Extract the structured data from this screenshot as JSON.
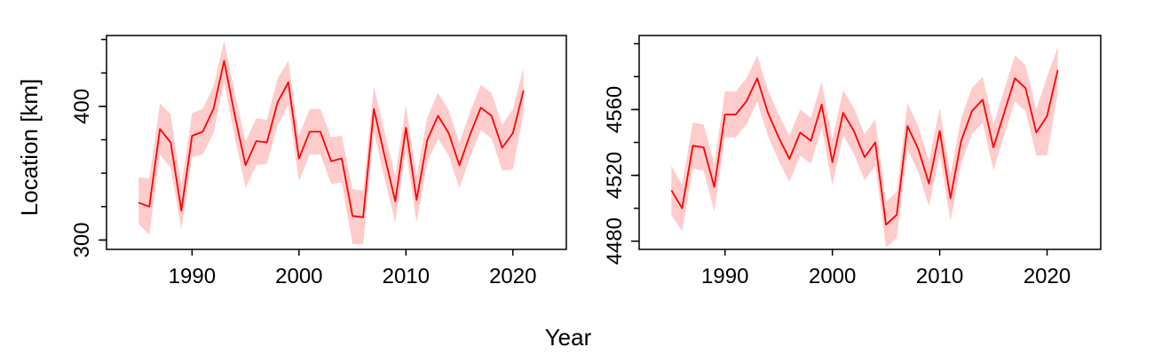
{
  "figure": {
    "shared_xlabel": "Year",
    "shared_ylabel": "Location [km]"
  },
  "colors": {
    "line": "#ff0000",
    "band": "#ffcccc"
  },
  "chart_data": [
    {
      "type": "line",
      "title": "",
      "xlabel": "Year",
      "ylabel": "Location [km]",
      "xlim": [
        1982,
        2025
      ],
      "ylim": [
        293,
        453
      ],
      "x_ticks": [
        1990,
        2000,
        2010,
        2020
      ],
      "y_ticks": [
        300,
        400
      ],
      "y_minor_ticks": [
        300,
        325,
        350,
        375,
        400,
        425,
        450
      ],
      "grid": false,
      "x": [
        1985,
        1986,
        1987,
        1988,
        1989,
        1990,
        1991,
        1992,
        1993,
        1994,
        1995,
        1996,
        1997,
        1998,
        1999,
        2000,
        2001,
        2002,
        2003,
        2004,
        2005,
        2006,
        2007,
        2008,
        2009,
        2010,
        2011,
        2012,
        2013,
        2014,
        2015,
        2016,
        2017,
        2018,
        2019,
        2020,
        2021
      ],
      "series": [
        {
          "values": [
            328,
            325,
            383,
            373,
            322,
            378,
            381,
            398,
            434,
            393,
            356,
            374,
            373,
            403,
            418,
            361,
            381,
            381,
            359,
            361,
            318,
            317,
            398,
            363,
            329,
            384,
            330,
            375,
            393,
            380,
            356,
            379,
            399,
            393,
            369,
            380,
            412
          ],
          "lower": [
            312,
            304,
            364,
            354,
            308,
            362,
            364,
            380,
            418,
            376,
            339,
            356,
            357,
            386,
            401,
            344,
            364,
            364,
            342,
            343,
            297,
            297,
            381,
            346,
            313,
            367,
            313,
            358,
            376,
            363,
            339,
            362,
            382,
            376,
            352,
            353,
            395
          ],
          "upper": [
            347,
            346,
            402,
            394,
            341,
            395,
            398,
            415,
            449,
            410,
            374,
            391,
            390,
            421,
            434,
            378,
            398,
            398,
            377,
            378,
            338,
            337,
            415,
            381,
            348,
            401,
            348,
            392,
            410,
            397,
            373,
            396,
            416,
            410,
            386,
            398,
            429
          ]
        }
      ]
    },
    {
      "type": "line",
      "title": "",
      "xlabel": "Year",
      "ylabel": "",
      "xlim": [
        1982,
        2025
      ],
      "ylim": [
        4475,
        4605
      ],
      "x_ticks": [
        1990,
        2000,
        2010,
        2020
      ],
      "y_ticks": [
        4480,
        4520,
        4560
      ],
      "y_minor_ticks": [
        4480,
        4500,
        4520,
        4540,
        4560,
        4580,
        4600
      ],
      "grid": false,
      "x": [
        1985,
        1986,
        1987,
        1988,
        1989,
        1990,
        1991,
        1992,
        1993,
        1994,
        1995,
        1996,
        1997,
        1998,
        1999,
        2000,
        2001,
        2002,
        2003,
        2004,
        2005,
        2006,
        2007,
        2008,
        2009,
        2010,
        2011,
        2012,
        2013,
        2014,
        2015,
        2016,
        2017,
        2018,
        2019,
        2020,
        2021
      ],
      "series": [
        {
          "values": [
            4511,
            4500,
            4538,
            4537,
            4513,
            4557,
            4557,
            4565,
            4579,
            4558,
            4543,
            4530,
            4546,
            4541,
            4563,
            4528,
            4558,
            4547,
            4531,
            4540,
            4490,
            4496,
            4550,
            4536,
            4515,
            4547,
            4506,
            4541,
            4559,
            4566,
            4537,
            4558,
            4579,
            4573,
            4546,
            4556,
            4584
          ],
          "lower": [
            4496,
            4486,
            4524,
            4523,
            4498,
            4543,
            4543,
            4551,
            4565,
            4544,
            4529,
            4516,
            4532,
            4527,
            4549,
            4514,
            4544,
            4533,
            4517,
            4526,
            4476,
            4482,
            4536,
            4522,
            4501,
            4533,
            4492,
            4527,
            4545,
            4552,
            4523,
            4544,
            4565,
            4559,
            4532,
            4532,
            4570
          ],
          "upper": [
            4526,
            4514,
            4552,
            4551,
            4527,
            4571,
            4571,
            4579,
            4593,
            4572,
            4557,
            4544,
            4560,
            4555,
            4577,
            4542,
            4572,
            4561,
            4545,
            4554,
            4504,
            4510,
            4564,
            4550,
            4529,
            4561,
            4520,
            4555,
            4573,
            4580,
            4551,
            4572,
            4593,
            4587,
            4560,
            4580,
            4598
          ]
        }
      ]
    }
  ]
}
